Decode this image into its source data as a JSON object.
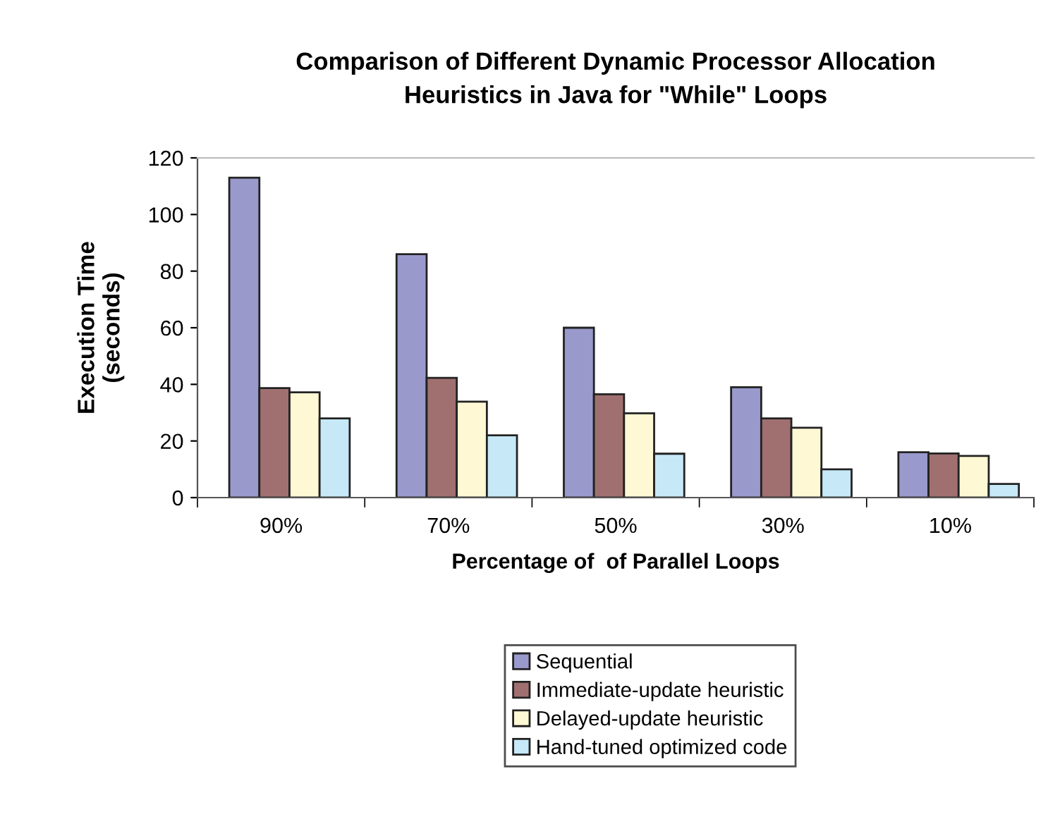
{
  "chart_data": {
    "type": "bar",
    "title": "Comparison of Different Dynamic Processor Allocation\nHeuristics in Java for \"While\" Loops",
    "xlabel": "Percentage of  of Parallel Loops",
    "ylabel": "Execution Time\n(seconds)",
    "categories": [
      "90%",
      "70%",
      "50%",
      "30%",
      "10%"
    ],
    "series": [
      {
        "name": "Sequential",
        "color": "#9999cc",
        "values": [
          113,
          86,
          60,
          39,
          16
        ]
      },
      {
        "name": "Immediate-update heuristic",
        "color": "#a07070",
        "values": [
          38.7,
          42.3,
          36.5,
          28,
          15.6
        ]
      },
      {
        "name": "Delayed-update heuristic",
        "color": "#fff8d4",
        "values": [
          37.2,
          33.9,
          29.8,
          24.7,
          14.7
        ]
      },
      {
        "name": "Hand-tuned optimized code",
        "color": "#c6e8f7",
        "values": [
          28,
          22,
          15.5,
          10,
          4.8
        ]
      }
    ],
    "ylim": [
      0,
      120
    ],
    "yticks": [
      0,
      20,
      40,
      60,
      80,
      100,
      120
    ],
    "grid": false,
    "legend": "bottom"
  }
}
